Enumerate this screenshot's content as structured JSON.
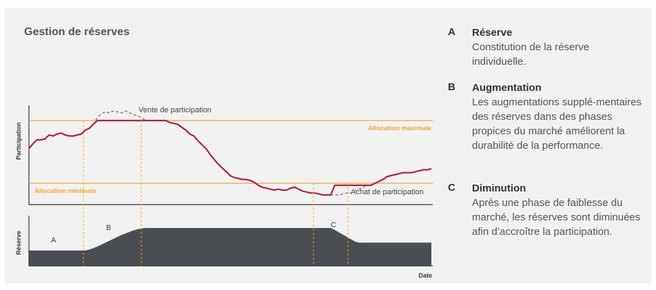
{
  "title": "Gestion de réserves",
  "colors": {
    "participation": "#b21f4b",
    "threshold": "#f0a830",
    "reserve": "#4a4d52",
    "axis": "#333333",
    "dashed": "#888888"
  },
  "chart_data": [
    {
      "type": "line",
      "ylabel": "Participation",
      "thresholds": [
        {
          "label": "Allocation maximale",
          "value": 0.87
        },
        {
          "label": "Allocation minimale",
          "value": 0.2
        }
      ],
      "annotations": [
        "Vente de participation",
        "Achat de participation"
      ],
      "series": [
        {
          "values": [
            0.58,
            0.63,
            0.67,
            0.67,
            0.68,
            0.72,
            0.71,
            0.73,
            0.74,
            0.72,
            0.71,
            0.71,
            0.72,
            0.73,
            0.77,
            0.79,
            0.83,
            0.87,
            0.87,
            0.87,
            0.87,
            0.87,
            0.87,
            0.87,
            0.87,
            0.87,
            0.87,
            0.87,
            0.87,
            0.87,
            0.87,
            0.87,
            0.87,
            0.87,
            0.87,
            0.85,
            0.84,
            0.83,
            0.8,
            0.77,
            0.73,
            0.71,
            0.66,
            0.62,
            0.58,
            0.52,
            0.47,
            0.42,
            0.38,
            0.34,
            0.3,
            0.28,
            0.27,
            0.26,
            0.26,
            0.25,
            0.23,
            0.2,
            0.18,
            0.17,
            0.16,
            0.15,
            0.16,
            0.15,
            0.15,
            0.17,
            0.18,
            0.16,
            0.14,
            0.13,
            0.12,
            0.12,
            0.11,
            0.1,
            0.1,
            0.1,
            0.2,
            0.2,
            0.2,
            0.2,
            0.2,
            0.2,
            0.2,
            0.2,
            0.2,
            0.2,
            0.22,
            0.24,
            0.26,
            0.29,
            0.3,
            0.31,
            0.32,
            0.33,
            0.33,
            0.33,
            0.34,
            0.35,
            0.36,
            0.36,
            0.37
          ]
        },
        {
          "values": [
            null,
            null,
            null,
            null,
            null,
            null,
            null,
            null,
            null,
            null,
            null,
            null,
            null,
            null,
            null,
            null,
            0.83,
            0.9,
            0.94,
            0.96,
            0.95,
            0.97,
            0.96,
            0.95,
            0.97,
            0.95,
            0.93,
            0.92,
            0.9,
            0.87,
            null,
            null,
            null,
            null,
            null,
            null,
            null,
            null,
            null,
            null,
            null,
            null,
            null,
            null,
            null,
            null,
            null,
            null,
            null,
            null,
            null,
            null,
            null,
            null,
            null,
            null,
            null,
            null,
            null,
            null,
            null,
            null,
            null,
            null,
            null,
            null,
            null,
            null,
            null,
            null,
            null,
            null,
            null,
            null,
            null,
            0.1,
            0.1,
            0.1,
            0.11,
            0.12,
            0.12,
            0.14,
            0.16,
            0.18,
            0.2,
            null,
            null,
            null,
            null,
            null,
            null,
            null,
            null,
            null,
            null,
            null,
            null,
            null,
            null,
            null,
            null
          ]
        }
      ]
    },
    {
      "type": "area",
      "ylabel": "Réserve",
      "xlabel": "Date",
      "phases": [
        "A",
        "B",
        "C"
      ],
      "values": [
        0.4,
        0.4,
        0.4,
        0.4,
        0.4,
        0.4,
        0.4,
        0.4,
        0.4,
        0.4,
        0.4,
        0.4,
        0.4,
        0.4,
        0.4,
        0.42,
        0.46,
        0.5,
        0.55,
        0.6,
        0.65,
        0.7,
        0.75,
        0.8,
        0.84,
        0.88,
        0.92,
        0.95,
        0.97,
        0.98,
        0.98,
        0.98,
        0.98,
        0.98,
        0.98,
        0.98,
        0.98,
        0.98,
        0.98,
        0.98,
        0.98,
        0.98,
        0.98,
        0.98,
        0.98,
        0.98,
        0.98,
        0.98,
        0.98,
        0.98,
        0.98,
        0.98,
        0.98,
        0.98,
        0.98,
        0.98,
        0.98,
        0.98,
        0.98,
        0.98,
        0.98,
        0.98,
        0.98,
        0.98,
        0.98,
        0.98,
        0.98,
        0.98,
        0.98,
        0.98,
        0.98,
        0.98,
        0.98,
        0.98,
        0.98,
        0.98,
        0.93,
        0.87,
        0.81,
        0.75,
        0.69,
        0.63,
        0.6,
        0.6,
        0.6,
        0.6,
        0.6,
        0.6,
        0.6,
        0.6,
        0.6,
        0.6,
        0.6,
        0.6,
        0.6,
        0.6,
        0.6,
        0.6,
        0.6,
        0.6,
        0.6
      ]
    }
  ],
  "legend": [
    {
      "letter": "A",
      "heading": "Réserve",
      "text": "Constitution de la réserve individuelle."
    },
    {
      "letter": "B",
      "heading": "Augmentation",
      "text": "Les augmentations supplé-mentaires des réserves dans des phases propices du marché améliorent la durabilité de la performance."
    },
    {
      "letter": "C",
      "heading": "Diminution",
      "text": "Après une phase de faiblesse du marché, les réserves sont diminuées afin d’accroître la participation."
    }
  ]
}
